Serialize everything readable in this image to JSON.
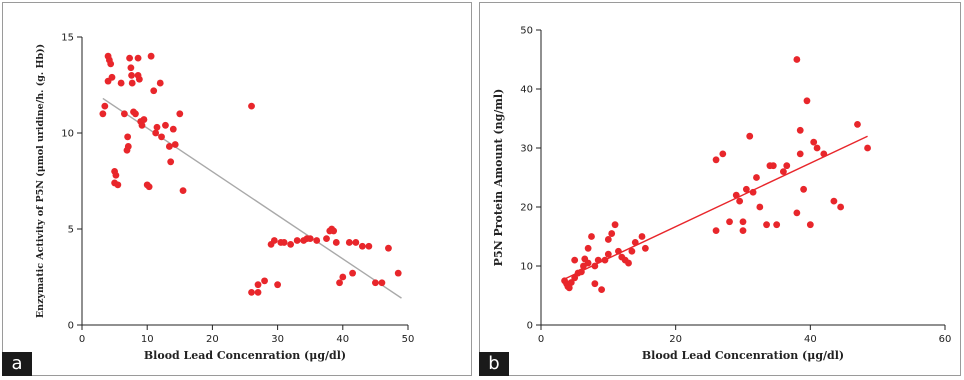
{
  "panels": [
    {
      "letter": "a",
      "chart_data": {
        "type": "scatter",
        "xlabel": "Blood Lead Concenration (μg/dl)",
        "ylabel": "Enzymatic Activity of P5N (μmol uridine/h. (g. Hb))",
        "xlim": [
          0,
          50
        ],
        "ylim": [
          0,
          15
        ],
        "xticks": [
          "0",
          "10",
          "20",
          "30",
          "40",
          "50"
        ],
        "yticks": [
          "0",
          "5",
          "10",
          "15"
        ],
        "grid": false,
        "point_color": "#e8262b",
        "trend_color": "#a9a9a9",
        "trendline": {
          "x": [
            3.2,
            49.0
          ],
          "y": [
            11.8,
            1.4
          ]
        },
        "points": [
          [
            3.2,
            11.0
          ],
          [
            3.5,
            11.4
          ],
          [
            4.0,
            14.0
          ],
          [
            4.2,
            13.8
          ],
          [
            4.4,
            13.6
          ],
          [
            4.0,
            12.7
          ],
          [
            4.6,
            12.9
          ],
          [
            5.0,
            8.0
          ],
          [
            5.2,
            7.8
          ],
          [
            5.0,
            7.4
          ],
          [
            5.5,
            7.3
          ],
          [
            6.0,
            12.6
          ],
          [
            6.5,
            11.0
          ],
          [
            7.0,
            9.8
          ],
          [
            7.1,
            9.3
          ],
          [
            6.9,
            9.1
          ],
          [
            7.3,
            13.9
          ],
          [
            7.5,
            13.4
          ],
          [
            7.6,
            13.0
          ],
          [
            7.7,
            12.6
          ],
          [
            7.9,
            11.1
          ],
          [
            8.2,
            11.0
          ],
          [
            8.6,
            13.9
          ],
          [
            8.6,
            13.0
          ],
          [
            8.8,
            12.8
          ],
          [
            9.0,
            10.6
          ],
          [
            9.2,
            10.4
          ],
          [
            9.5,
            10.7
          ],
          [
            10.0,
            7.3
          ],
          [
            10.3,
            7.2
          ],
          [
            10.6,
            14.0
          ],
          [
            11.0,
            12.2
          ],
          [
            11.3,
            10.0
          ],
          [
            11.5,
            10.3
          ],
          [
            12.0,
            12.6
          ],
          [
            12.2,
            9.8
          ],
          [
            12.8,
            10.4
          ],
          [
            13.4,
            9.3
          ],
          [
            13.6,
            8.5
          ],
          [
            14.0,
            10.2
          ],
          [
            14.3,
            9.4
          ],
          [
            15.0,
            11.0
          ],
          [
            15.5,
            7.0
          ],
          [
            26.0,
            11.4
          ],
          [
            26.0,
            1.7
          ],
          [
            27.0,
            1.7
          ],
          [
            27.0,
            2.1
          ],
          [
            28.0,
            2.3
          ],
          [
            29.0,
            4.2
          ],
          [
            29.5,
            4.4
          ],
          [
            30.5,
            4.3
          ],
          [
            30.0,
            2.1
          ],
          [
            31.0,
            4.3
          ],
          [
            32.0,
            4.2
          ],
          [
            33.0,
            4.4
          ],
          [
            34.0,
            4.4
          ],
          [
            34.5,
            4.5
          ],
          [
            35.0,
            4.5
          ],
          [
            36.0,
            4.4
          ],
          [
            37.5,
            4.5
          ],
          [
            38.0,
            4.9
          ],
          [
            38.3,
            5.0
          ],
          [
            38.6,
            4.9
          ],
          [
            39.0,
            4.3
          ],
          [
            39.5,
            2.2
          ],
          [
            40.0,
            2.5
          ],
          [
            41.0,
            4.3
          ],
          [
            41.5,
            2.7
          ],
          [
            42.0,
            4.3
          ],
          [
            43.0,
            4.1
          ],
          [
            44.0,
            4.1
          ],
          [
            45.0,
            2.2
          ],
          [
            46.0,
            2.2
          ],
          [
            47.0,
            4.0
          ],
          [
            48.5,
            2.7
          ]
        ]
      }
    },
    {
      "letter": "b",
      "chart_data": {
        "type": "scatter",
        "xlabel": "Blood Lead Concenration (μg/dl)",
        "ylabel": "P5N Protein Amount (ng/ml)",
        "xlim": [
          0,
          60
        ],
        "ylim": [
          0,
          50
        ],
        "xticks": [
          "0",
          "20",
          "40",
          "60"
        ],
        "yticks": [
          "0",
          "10",
          "20",
          "30",
          "40",
          "50"
        ],
        "grid": false,
        "point_color": "#e8262b",
        "trend_color": "#e8262b",
        "trendline": {
          "x": [
            3.5,
            48.5
          ],
          "y": [
            7.8,
            32.0
          ]
        },
        "points": [
          [
            3.5,
            7.5
          ],
          [
            3.8,
            7.0
          ],
          [
            4.0,
            6.5
          ],
          [
            4.2,
            6.3
          ],
          [
            4.5,
            7.2
          ],
          [
            5.0,
            8.0
          ],
          [
            5.0,
            11.0
          ],
          [
            5.5,
            8.8
          ],
          [
            6.0,
            9.0
          ],
          [
            6.3,
            10.0
          ],
          [
            6.5,
            11.2
          ],
          [
            7.0,
            10.5
          ],
          [
            7.0,
            13.0
          ],
          [
            7.5,
            15.0
          ],
          [
            8.0,
            10.0
          ],
          [
            8.0,
            7.0
          ],
          [
            8.5,
            11.0
          ],
          [
            9.0,
            6.0
          ],
          [
            9.5,
            11.0
          ],
          [
            10.0,
            12.0
          ],
          [
            10.0,
            14.5
          ],
          [
            10.5,
            15.5
          ],
          [
            11.0,
            17.0
          ],
          [
            11.5,
            12.5
          ],
          [
            12.0,
            11.5
          ],
          [
            12.5,
            11.0
          ],
          [
            13.0,
            10.5
          ],
          [
            13.5,
            12.5
          ],
          [
            14.0,
            14.0
          ],
          [
            15.0,
            15.0
          ],
          [
            15.5,
            13.0
          ],
          [
            26.0,
            28.0
          ],
          [
            26.0,
            16.0
          ],
          [
            27.0,
            29.0
          ],
          [
            28.0,
            17.5
          ],
          [
            29.0,
            22.0
          ],
          [
            29.5,
            21.0
          ],
          [
            30.0,
            17.5
          ],
          [
            30.0,
            16.0
          ],
          [
            30.5,
            23.0
          ],
          [
            31.0,
            32.0
          ],
          [
            31.5,
            22.5
          ],
          [
            32.0,
            25.0
          ],
          [
            32.5,
            20.0
          ],
          [
            33.5,
            17.0
          ],
          [
            34.0,
            27.0
          ],
          [
            34.5,
            27.0
          ],
          [
            35.0,
            17.0
          ],
          [
            36.0,
            26.0
          ],
          [
            36.5,
            27.0
          ],
          [
            38.0,
            45.0
          ],
          [
            38.0,
            19.0
          ],
          [
            38.5,
            29.0
          ],
          [
            38.5,
            33.0
          ],
          [
            39.0,
            23.0
          ],
          [
            39.5,
            38.0
          ],
          [
            40.0,
            17.0
          ],
          [
            40.5,
            31.0
          ],
          [
            41.0,
            30.0
          ],
          [
            42.0,
            29.0
          ],
          [
            43.5,
            21.0
          ],
          [
            44.5,
            20.0
          ],
          [
            47.0,
            34.0
          ],
          [
            48.5,
            30.0
          ]
        ]
      }
    }
  ]
}
